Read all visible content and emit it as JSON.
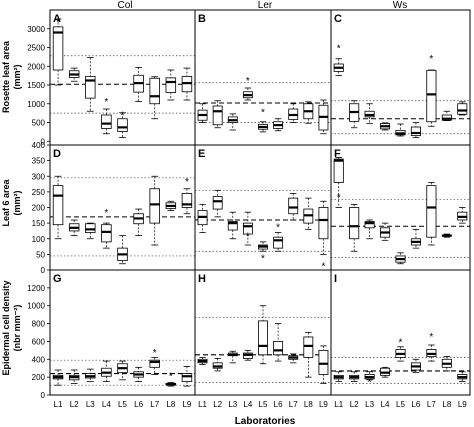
{
  "figure": {
    "column_headers": [
      "Col",
      "Ler",
      "Ws"
    ],
    "panel_labels": [
      "A",
      "B",
      "C",
      "D",
      "E",
      "F",
      "G",
      "H",
      "I"
    ],
    "row_ylabels": [
      [
        "Rosette leaf area",
        "(mm²)"
      ],
      [
        "Leaf 6 area",
        "(mm²)"
      ],
      [
        "Epidermal cell density",
        "(nbr mm⁻²)"
      ]
    ],
    "xlabel": "Laboratories",
    "x_tick_labels": [
      "L1",
      "L2",
      "L3",
      "L4",
      "L5",
      "L6",
      "L7",
      "L8",
      "L9"
    ],
    "row_ylims": [
      [
        -100,
        3500
      ],
      [
        0,
        400
      ],
      [
        0,
        1400
      ]
    ],
    "row_yticks": [
      [
        0,
        500,
        1000,
        1500,
        2000,
        2500,
        3000
      ],
      [
        0,
        50,
        100,
        150,
        200,
        250,
        300,
        350,
        400
      ],
      [
        0,
        200,
        400,
        600,
        800,
        1000,
        1200
      ]
    ]
  },
  "chart_data": [
    {
      "panel": "A",
      "genotype": "Col",
      "type": "box",
      "ylim": [
        -100,
        3500
      ],
      "categories": [
        "L1",
        "L2",
        "L3",
        "L4",
        "L5",
        "L6",
        "L7",
        "L8",
        "L9"
      ],
      "median": [
        2900,
        1780,
        1620,
        470,
        370,
        1550,
        1200,
        1580,
        1550
      ],
      "q1": [
        1900,
        1700,
        1150,
        340,
        260,
        1310,
        1000,
        1300,
        1320
      ],
      "q3": [
        3050,
        1880,
        1730,
        700,
        600,
        1760,
        1680,
        1690,
        1730
      ],
      "whisker_low": [
        1500,
        1600,
        800,
        200,
        100,
        1060,
        600,
        1100,
        1100
      ],
      "whisker_high": [
        3260,
        1950,
        2230,
        860,
        760,
        1970,
        1720,
        1900,
        1950
      ],
      "outliers": [
        [
          3200
        ],
        [],
        [],
        [
          1070
        ],
        [
          720
        ],
        [],
        [],
        [],
        []
      ],
      "ref_lines": {
        "mean": 1520,
        "ci_low": 750,
        "ci_high": 2280
      }
    },
    {
      "panel": "B",
      "genotype": "Ler",
      "type": "box",
      "ylim": [
        -100,
        3500
      ],
      "categories": [
        "L1",
        "L2",
        "L3",
        "L4",
        "L5",
        "L6",
        "L7",
        "L8",
        "L9"
      ],
      "median": [
        700,
        800,
        560,
        1230,
        380,
        430,
        700,
        800,
        650
      ],
      "q1": [
        560,
        440,
        500,
        1160,
        320,
        340,
        580,
        600,
        300
      ],
      "q3": [
        830,
        940,
        650,
        1320,
        450,
        520,
        860,
        1000,
        960
      ],
      "whisker_low": [
        500,
        360,
        300,
        1100,
        250,
        280,
        500,
        480,
        200
      ],
      "whisker_high": [
        1000,
        1080,
        730,
        1420,
        520,
        600,
        1000,
        1050,
        1100
      ],
      "outliers": [
        [],
        [],
        [],
        [
          1640
        ],
        [
          800
        ],
        [],
        [],
        [],
        []
      ],
      "ref_lines": {
        "mean": 1020,
        "ci_low": 500,
        "ci_high": 1560
      }
    },
    {
      "panel": "C",
      "genotype": "Ws",
      "type": "box",
      "ylim": [
        -100,
        3500
      ],
      "categories": [
        "L1",
        "L2",
        "L3",
        "L4",
        "L5",
        "L6",
        "L7",
        "L8",
        "L9"
      ],
      "median": [
        1960,
        780,
        700,
        400,
        210,
        220,
        1250,
        600,
        820
      ],
      "q1": [
        1860,
        530,
        650,
        330,
        170,
        150,
        520,
        560,
        720
      ],
      "q3": [
        2060,
        1000,
        800,
        470,
        290,
        380,
        1890,
        700,
        1000
      ],
      "whisker_low": [
        1750,
        360,
        470,
        300,
        140,
        100,
        400,
        550,
        700
      ],
      "whisker_high": [
        2200,
        1080,
        1000,
        490,
        460,
        500,
        1900,
        800,
        1050
      ],
      "outliers": [
        [
          2500
        ],
        [],
        [],
        [],
        [],
        [],
        [
          2220
        ],
        [],
        []
      ],
      "ref_lines": {
        "mean": 600,
        "ci_low": 200,
        "ci_high": 1080
      }
    },
    {
      "panel": "D",
      "genotype": "Col",
      "type": "box",
      "ylim": [
        0,
        400
      ],
      "categories": [
        "L1",
        "L2",
        "L3",
        "L4",
        "L5",
        "L6",
        "L7",
        "L8",
        "L9"
      ],
      "median": [
        238,
        135,
        130,
        122,
        50,
        165,
        210,
        205,
        210
      ],
      "q1": [
        145,
        125,
        120,
        90,
        30,
        148,
        150,
        197,
        200
      ],
      "q3": [
        270,
        148,
        148,
        145,
        70,
        180,
        260,
        215,
        245
      ],
      "whisker_low": [
        100,
        110,
        100,
        70,
        20,
        110,
        80,
        190,
        180
      ],
      "whisker_high": [
        300,
        160,
        150,
        150,
        110,
        195,
        300,
        220,
        260
      ],
      "outliers": [
        [],
        [],
        [],
        [
          185
        ],
        [],
        [],
        [],
        [],
        [
          285
        ]
      ],
      "ref_lines": {
        "mean": 170,
        "ci_low": 45,
        "ci_high": 295
      }
    },
    {
      "panel": "E",
      "genotype": "Ler",
      "type": "box",
      "ylim": [
        0,
        400
      ],
      "categories": [
        "L1",
        "L2",
        "L3",
        "L4",
        "L5",
        "L6",
        "L7",
        "L8",
        "L9"
      ],
      "median": [
        170,
        220,
        150,
        140,
        75,
        95,
        200,
        175,
        160
      ],
      "q1": [
        145,
        195,
        128,
        115,
        67,
        70,
        180,
        150,
        100
      ],
      "q3": [
        190,
        235,
        155,
        150,
        80,
        105,
        230,
        195,
        200
      ],
      "whisker_low": [
        120,
        170,
        100,
        80,
        60,
        60,
        160,
        130,
        50
      ],
      "whisker_high": [
        210,
        255,
        185,
        185,
        90,
        120,
        245,
        230,
        220
      ],
      "outliers": [
        [],
        [],
        [],
        [
          110
        ],
        [
          40
        ],
        [
          140
        ],
        [],
        [],
        [
          15
        ]
      ],
      "ref_lines": {
        "mean": 160,
        "ci_low": 60,
        "ci_high": 255
      }
    },
    {
      "panel": "F",
      "genotype": "Ws",
      "type": "box",
      "ylim": [
        0,
        400
      ],
      "categories": [
        "L1",
        "L2",
        "L3",
        "L4",
        "L5",
        "L6",
        "L7",
        "L8",
        "L9"
      ],
      "median": [
        350,
        140,
        150,
        120,
        35,
        90,
        200,
        110,
        170
      ],
      "q1": [
        280,
        100,
        135,
        105,
        25,
        80,
        105,
        108,
        160
      ],
      "q3": [
        355,
        200,
        155,
        135,
        45,
        100,
        270,
        112,
        185
      ],
      "whisker_low": [
        200,
        60,
        100,
        95,
        20,
        70,
        80,
        105,
        150
      ],
      "whisker_high": [
        360,
        210,
        160,
        150,
        55,
        130,
        280,
        115,
        200
      ],
      "outliers": [
        [
          235
        ],
        [],
        [],
        [],
        [],
        [],
        [],
        [],
        []
      ],
      "ref_lines": {
        "mean": 140,
        "ci_low": 40,
        "ci_high": 225
      }
    },
    {
      "panel": "G",
      "genotype": "Col",
      "type": "box",
      "ylim": [
        0,
        1400
      ],
      "categories": [
        "L1",
        "L2",
        "L3",
        "L4",
        "L5",
        "L6",
        "L7",
        "L8",
        "L9"
      ],
      "median": [
        200,
        200,
        210,
        250,
        300,
        230,
        370,
        120,
        210
      ],
      "q1": [
        180,
        170,
        190,
        210,
        250,
        200,
        310,
        110,
        150
      ],
      "q3": [
        220,
        220,
        240,
        300,
        350,
        260,
        390,
        130,
        240
      ],
      "whisker_low": [
        110,
        130,
        150,
        150,
        170,
        150,
        230,
        100,
        100
      ],
      "whisker_high": [
        280,
        280,
        290,
        380,
        380,
        310,
        420,
        140,
        320
      ],
      "outliers": [
        [],
        [],
        [],
        [],
        [],
        [],
        [
          480
        ],
        [
          220
        ],
        []
      ],
      "ref_lines": {
        "mean": 240,
        "ci_low": 110,
        "ci_high": 390
      }
    },
    {
      "panel": "H",
      "genotype": "Ler",
      "type": "box",
      "ylim": [
        0,
        1400
      ],
      "categories": [
        "L1",
        "L2",
        "L3",
        "L4",
        "L5",
        "L6",
        "L7",
        "L8",
        "L9"
      ],
      "median": [
        380,
        320,
        450,
        450,
        550,
        500,
        420,
        550,
        350
      ],
      "q1": [
        360,
        300,
        440,
        410,
        450,
        450,
        400,
        420,
        230
      ],
      "q3": [
        400,
        360,
        470,
        470,
        830,
        600,
        440,
        650,
        500
      ],
      "whisker_low": [
        340,
        270,
        360,
        390,
        350,
        380,
        360,
        200,
        130
      ],
      "whisker_high": [
        420,
        410,
        490,
        500,
        1000,
        800,
        460,
        700,
        550
      ],
      "outliers": [
        [],
        [],
        [],
        [],
        [],
        [],
        [],
        [],
        []
      ],
      "ref_lines": {
        "mean": 450,
        "ci_low": 140,
        "ci_high": 870
      }
    },
    {
      "panel": "I",
      "genotype": "Ws",
      "type": "box",
      "ylim": [
        0,
        1400
      ],
      "categories": [
        "L1",
        "L2",
        "L3",
        "L4",
        "L5",
        "L6",
        "L7",
        "L8",
        "L9"
      ],
      "median": [
        200,
        200,
        200,
        250,
        460,
        320,
        460,
        350,
        200
      ],
      "q1": [
        180,
        180,
        180,
        220,
        420,
        280,
        430,
        310,
        180
      ],
      "q3": [
        220,
        220,
        230,
        300,
        510,
        360,
        510,
        400,
        230
      ],
      "whisker_low": [
        150,
        150,
        170,
        200,
        380,
        250,
        380,
        270,
        150
      ],
      "whisker_high": [
        260,
        260,
        260,
        310,
        540,
        400,
        560,
        430,
        260
      ],
      "outliers": [
        [],
        [],
        [
          150
        ],
        [],
        [
          600
        ],
        [],
        [
          660
        ],
        [],
        []
      ],
      "ref_lines": {
        "mean": 270,
        "ci_low": 130,
        "ci_high": 420
      }
    }
  ]
}
